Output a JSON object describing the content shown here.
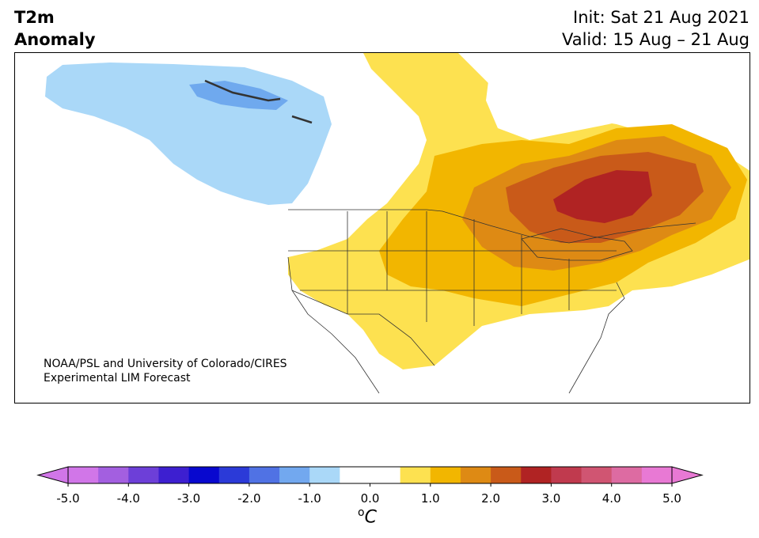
{
  "header": {
    "title_line1": "T2m",
    "title_line2": "Anomaly",
    "init": "Init: Sat 21 Aug 2021",
    "valid": "Valid: 15 Aug – 21 Aug"
  },
  "map": {
    "credit_line1": "NOAA/PSL and University of Colorado/CIRES",
    "credit_line2": "Experimental LIM Forecast",
    "projection_region": "North America",
    "colors": {
      "pale_blue": "#aad8f8",
      "mid_blue": "#6fa9ee",
      "yellow": "#fde150",
      "gold": "#f2b600",
      "orange": "#de8a14",
      "dark_orange": "#c95a19",
      "red": "#b02323",
      "border": "#333333"
    }
  },
  "colorbar": {
    "tick_labels": [
      "-5.0",
      "-4.0",
      "-3.0",
      "-2.0",
      "-1.0",
      "0.0",
      "1.0",
      "2.0",
      "3.0",
      "4.0",
      "5.0"
    ],
    "unit": "C",
    "unit_sup": "o",
    "colors": [
      "#d176e8",
      "#a35fe0",
      "#6d3fd8",
      "#3d1fd0",
      "#0808cf",
      "#2b3ad8",
      "#5072e4",
      "#72a8ef",
      "#aad8f8",
      "#ffffff",
      "#ffffff",
      "#fde150",
      "#f2b600",
      "#de8a14",
      "#c95a19",
      "#b02323",
      "#c03a4e",
      "#d05572",
      "#dd6ba2",
      "#e879d4"
    ],
    "under_color": "#d176e8",
    "over_color": "#e879d4"
  }
}
